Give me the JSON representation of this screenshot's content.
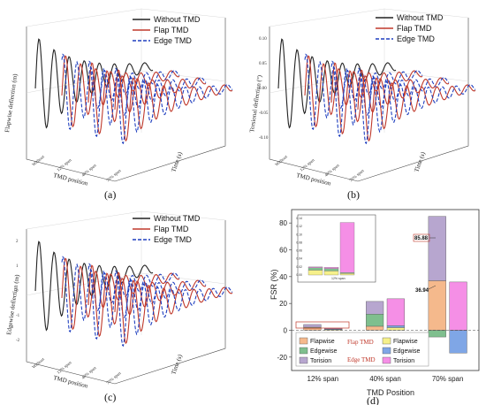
{
  "chart_data": [
    {
      "id": "a",
      "type": "line",
      "caption": "(a)",
      "ylabel": "Flapwise deflection (m)",
      "xlabel": "TMD position",
      "zlabel": "Time (s)",
      "position_ticks": [
        "Without",
        "12% span",
        "40% span",
        "70% span"
      ],
      "series": [
        {
          "name": "Without TMD",
          "color": "#222222",
          "style": "solid"
        },
        {
          "name": "Flap TMD",
          "color": "#c0392b",
          "style": "solid"
        },
        {
          "name": "Edge TMD",
          "color": "#1f3fbf",
          "style": "dashed"
        }
      ]
    },
    {
      "id": "b",
      "type": "line",
      "caption": "(b)",
      "ylabel": "Torsional deflection (°)",
      "xlabel": "TMD position",
      "zlabel": "Time (s)",
      "y_ticks": [
        "0.10",
        "0.05",
        "0.00",
        "-0.05",
        "-0.10"
      ],
      "position_ticks": [
        "Without",
        "12% span",
        "40% span",
        "70% span"
      ],
      "series": [
        {
          "name": "Without TMD",
          "color": "#222222",
          "style": "solid"
        },
        {
          "name": "Flap TMD",
          "color": "#c0392b",
          "style": "solid"
        },
        {
          "name": "Edge TMD",
          "color": "#1f3fbf",
          "style": "dashed"
        }
      ]
    },
    {
      "id": "c",
      "type": "line",
      "caption": "(c)",
      "ylabel": "Edgewise deflection (m)",
      "xlabel": "TMD position",
      "zlabel": "Time (s)",
      "y_ticks": [
        "2",
        "1",
        "0",
        "-1",
        "-2"
      ],
      "position_ticks": [
        "Without",
        "12% span",
        "40% span",
        "70% span"
      ],
      "series": [
        {
          "name": "Without TMD",
          "color": "#222222",
          "style": "solid"
        },
        {
          "name": "Flap TMD",
          "color": "#c0392b",
          "style": "solid"
        },
        {
          "name": "Edge TMD",
          "color": "#1f3fbf",
          "style": "dashed"
        }
      ]
    },
    {
      "id": "d",
      "type": "bar",
      "caption": "(d)",
      "xlabel": "TMD Position",
      "ylabel": "FSR (%)",
      "ylim": [
        -30,
        90
      ],
      "y_ticks": [
        -20,
        0,
        20,
        40,
        60,
        80
      ],
      "categories": [
        "12% span",
        "40% span",
        "70% span"
      ],
      "groups": [
        "Flap TMD",
        "Edge TMD"
      ],
      "components": [
        "Flapwise",
        "Edgewise",
        "Torision"
      ],
      "colors": {
        "flap": {
          "Flapwise": "#f5b98c",
          "Edgewise": "#7fbf8e",
          "Torision": "#b7a6cf"
        },
        "edge": {
          "Flapwise": "#f6f08a",
          "Edgewise": "#7fa6e6",
          "Torision": "#f58fe6"
        }
      },
      "series": [
        {
          "name": "Flap TMD",
          "Flapwise": [
            1.5,
            3.0,
            36.94
          ],
          "Edgewise": [
            0.8,
            9.0,
            -5.0
          ],
          "Torision": [
            2.0,
            9.5,
            48.0
          ]
        },
        {
          "name": "Edge TMD",
          "Flapwise": [
            0.5,
            2.0,
            0.0
          ],
          "Edgewise": [
            0.5,
            1.5,
            -17.0
          ],
          "Torision": [
            0.5,
            20.0,
            36.0
          ]
        }
      ],
      "annotations": [
        "85.88",
        "36.94"
      ],
      "inset": {
        "y_ticks": [
          "0.14",
          "0.12",
          "0.10",
          "0.08",
          "0.06",
          "0.04",
          "0.02",
          "0.00"
        ],
        "xlabel": "12% span"
      },
      "legend": {
        "flap_label": "Flap TMD",
        "edge_label": "Edge TMD"
      }
    }
  ]
}
